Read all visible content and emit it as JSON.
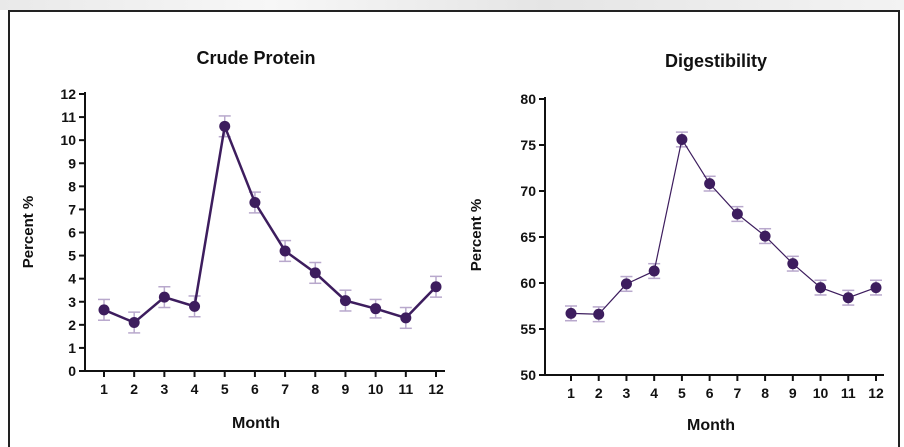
{
  "chart_data": [
    {
      "type": "line",
      "title": "Crude Protein",
      "xlabel": "Month",
      "ylabel": "Percent %",
      "categories": [
        "1",
        "2",
        "3",
        "4",
        "5",
        "6",
        "7",
        "8",
        "9",
        "10",
        "11",
        "12"
      ],
      "ylim": [
        0,
        12
      ],
      "yticks": [
        "0",
        "1",
        "2",
        "3",
        "4",
        "5",
        "6",
        "7",
        "8",
        "9",
        "10",
        "11",
        "12"
      ],
      "series": [
        {
          "values": [
            2.65,
            2.1,
            3.2,
            2.8,
            10.6,
            7.3,
            5.2,
            4.25,
            3.05,
            2.7,
            2.3,
            3.65
          ],
          "errors": [
            0.45,
            0.45,
            0.45,
            0.45,
            0.45,
            0.45,
            0.45,
            0.45,
            0.45,
            0.4,
            0.45,
            0.45
          ]
        }
      ],
      "grid": false,
      "line_color": "#3d1d5e",
      "error_color": "#b8a8cc"
    },
    {
      "type": "line",
      "title": "Digestibility",
      "xlabel": "Month",
      "ylabel": "Percent %",
      "categories": [
        "1",
        "2",
        "3",
        "4",
        "5",
        "6",
        "7",
        "8",
        "9",
        "10",
        "11",
        "12"
      ],
      "ylim": [
        50,
        80
      ],
      "yticks": [
        "50",
        "55",
        "60",
        "65",
        "70",
        "75",
        "80"
      ],
      "series": [
        {
          "values": [
            56.7,
            56.6,
            59.9,
            61.3,
            75.6,
            70.8,
            67.5,
            65.1,
            62.1,
            59.5,
            58.4,
            59.5
          ],
          "errors": [
            0.8,
            0.8,
            0.8,
            0.8,
            0.8,
            0.8,
            0.8,
            0.8,
            0.8,
            0.8,
            0.8,
            0.8
          ]
        }
      ],
      "grid": false,
      "line_color": "#3d1d5e",
      "error_color": "#b8a8cc"
    }
  ]
}
